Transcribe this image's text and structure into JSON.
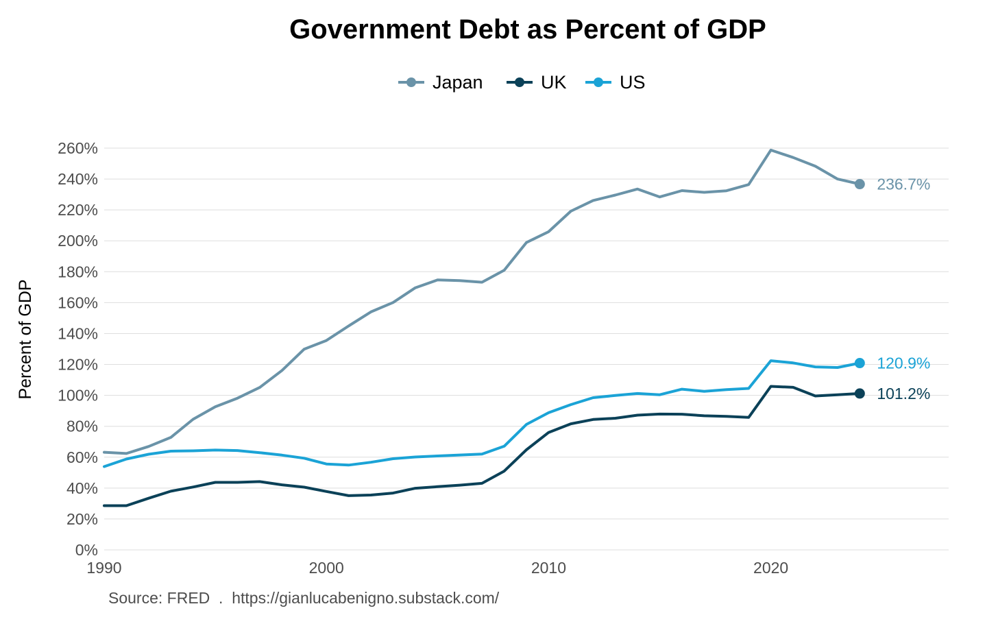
{
  "chart_data": {
    "type": "line",
    "title": "Government Debt as Percent of GDP",
    "xlabel": "",
    "ylabel": "Percent of GDP",
    "xlim": [
      1990,
      2028
    ],
    "ylim": [
      0,
      260
    ],
    "x_ticks": [
      1990,
      2000,
      2010,
      2020
    ],
    "y_ticks": [
      0,
      20,
      40,
      60,
      80,
      100,
      120,
      140,
      160,
      180,
      200,
      220,
      240,
      260
    ],
    "y_tick_suffix": "%",
    "grid": true,
    "legend_position": "top-center",
    "x": [
      1990,
      1991,
      1992,
      1993,
      1994,
      1995,
      1996,
      1997,
      1998,
      1999,
      2000,
      2001,
      2002,
      2003,
      2004,
      2005,
      2006,
      2007,
      2008,
      2009,
      2010,
      2011,
      2012,
      2013,
      2014,
      2015,
      2016,
      2017,
      2018,
      2019,
      2020,
      2021,
      2022,
      2023,
      2024
    ],
    "series": [
      {
        "name": "Japan",
        "color": "#6a93a8",
        "values": [
          63.2,
          62.4,
          66.9,
          72.8,
          84.5,
          92.6,
          98.2,
          105.1,
          116.1,
          129.9,
          135.5,
          144.9,
          154.0,
          160.1,
          169.6,
          174.7,
          174.3,
          173.2,
          181.0,
          198.9,
          205.9,
          219.2,
          226.1,
          229.6,
          233.5,
          228.4,
          232.5,
          231.4,
          232.4,
          236.4,
          258.7,
          253.9,
          248.3,
          240.0,
          236.7
        ],
        "end_label": "236.7%"
      },
      {
        "name": "UK",
        "color": "#0b4158",
        "values": [
          28.6,
          28.6,
          33.4,
          38.0,
          40.7,
          43.7,
          43.7,
          44.2,
          42.1,
          40.6,
          37.8,
          35.1,
          35.5,
          36.8,
          39.9,
          40.9,
          41.9,
          43.1,
          51.0,
          64.8,
          76.0,
          81.6,
          84.4,
          85.2,
          87.2,
          87.9,
          87.8,
          86.8,
          86.4,
          85.7,
          105.8,
          105.2,
          99.6,
          100.4,
          101.2
        ],
        "end_label": "101.2%"
      },
      {
        "name": "US",
        "color": "#1ba3d6",
        "values": [
          53.9,
          58.8,
          61.9,
          63.9,
          64.1,
          64.6,
          64.3,
          62.9,
          61.3,
          59.3,
          55.6,
          54.9,
          56.7,
          59.0,
          60.1,
          60.8,
          61.4,
          62.0,
          67.1,
          81.2,
          88.8,
          94.0,
          98.5,
          99.9,
          101.2,
          100.4,
          104.0,
          102.6,
          103.7,
          104.5,
          122.4,
          121.0,
          118.4,
          118.0,
          120.9
        ],
        "end_label": "120.9%"
      }
    ],
    "caption": "Source: FRED  .  https://gianlucabenigno.substack.com/"
  }
}
